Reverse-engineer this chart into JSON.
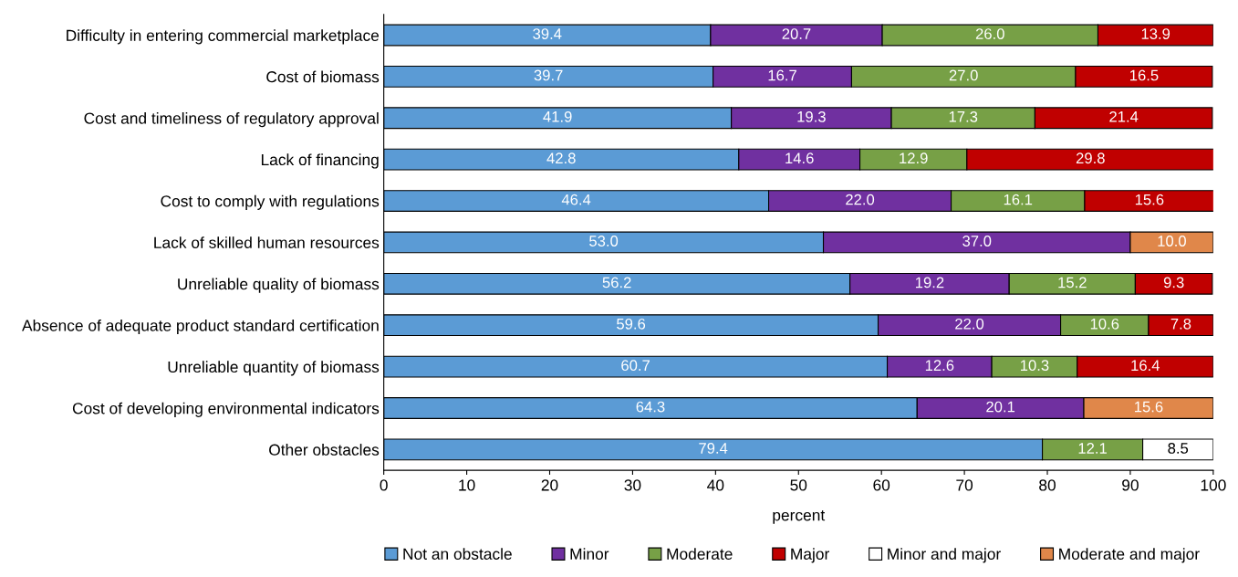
{
  "chart_data": {
    "type": "bar",
    "orientation": "horizontal",
    "stacked": true,
    "xlabel": "percent",
    "categories": [
      "Difficulty in entering commercial marketplace",
      "Cost of biomass",
      "Cost and timeliness of regulatory approval",
      "Lack of financing",
      "Cost to comply with regulations",
      "Lack of skilled human resources",
      "Unreliable quality of biomass",
      "Absence of adequate product standard certification",
      "Unreliable quantity of biomass",
      "Cost of developing environmental indicators",
      "Other obstacles"
    ],
    "series": [
      {
        "name": "Not an obstacle",
        "color": "#5b9bd5",
        "values": [
          39.4,
          39.7,
          41.9,
          42.8,
          46.4,
          53.0,
          56.2,
          59.6,
          60.7,
          64.3,
          79.4
        ],
        "value_labels": [
          "39.4",
          "39.7",
          "41.9",
          "42.8",
          "46.4",
          "53.0",
          "56.2",
          "59.6",
          "60.7",
          "64.3",
          "79.4"
        ]
      },
      {
        "name": "Minor",
        "color": "#7030a0",
        "values": [
          20.7,
          16.7,
          19.3,
          14.6,
          22.0,
          37.0,
          19.2,
          22.0,
          12.6,
          20.1,
          null
        ],
        "value_labels": [
          "20.7",
          "16.7",
          "19.3",
          "14.6",
          "22.0",
          "37.0",
          "19.2",
          "22.0",
          "12.6",
          "20.1",
          null
        ]
      },
      {
        "name": "Moderate",
        "color": "#77a046",
        "values": [
          26.0,
          27.0,
          17.3,
          12.9,
          16.1,
          null,
          15.2,
          10.6,
          10.3,
          null,
          12.1
        ],
        "value_labels": [
          "26.0",
          "27.0",
          "17.3",
          "12.9",
          "16.1",
          null,
          "15.2",
          "10.6",
          "10.3",
          null,
          "12.1"
        ]
      },
      {
        "name": "Major",
        "color": "#c00000",
        "values": [
          13.9,
          16.5,
          21.4,
          29.8,
          15.6,
          null,
          9.3,
          7.8,
          16.4,
          null,
          null
        ],
        "value_labels": [
          "13.9",
          "16.5",
          "21.4",
          "29.8",
          "15.6",
          null,
          "9.3",
          "7.8",
          "16.4",
          null,
          null
        ]
      },
      {
        "name": "Minor and major",
        "color": "#ffffff",
        "values": [
          null,
          null,
          null,
          null,
          null,
          null,
          null,
          null,
          null,
          null,
          8.5
        ],
        "value_labels": [
          null,
          null,
          null,
          null,
          null,
          null,
          null,
          null,
          null,
          null,
          "8.5"
        ]
      },
      {
        "name": "Moderate and major",
        "color": "#e0874a",
        "values": [
          null,
          null,
          null,
          null,
          null,
          10.0,
          null,
          null,
          null,
          15.6,
          null
        ],
        "value_labels": [
          null,
          null,
          null,
          null,
          null,
          "10.0",
          null,
          null,
          null,
          "15.6",
          null
        ]
      }
    ],
    "xlim": [
      0,
      100
    ],
    "xticks": [
      0,
      10,
      20,
      30,
      40,
      50,
      60,
      70,
      80,
      90,
      100
    ],
    "grid": false,
    "legend": "bottom"
  }
}
